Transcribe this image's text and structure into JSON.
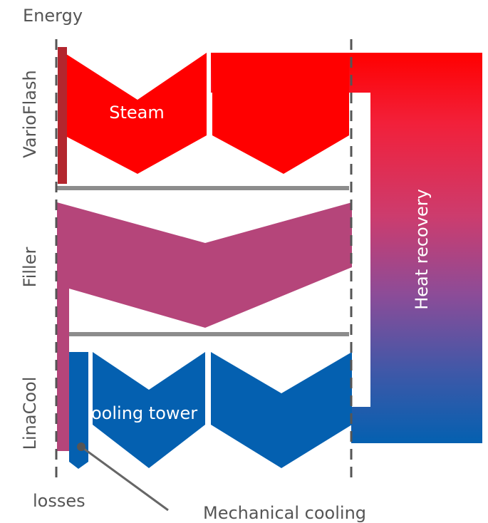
{
  "labels": {
    "energy": "Energy",
    "varioflash": "VarioFlash",
    "filler": "Filler",
    "linacool": "LinaCool",
    "steam": "Steam",
    "cooling_tower": "ooling tower",
    "heat_recovery": "Heat recovery",
    "losses": "losses",
    "mechanical_cooling": "Mechanical cooling"
  },
  "colors": {
    "steam": "#ff0000",
    "steam_edge": "#b3262e",
    "filler": "#b5457a",
    "cooling": "#0460b0",
    "divider": "#8c8c8c",
    "dashed_line": "#555555",
    "heat_recovery_top": "#ff0000",
    "heat_recovery_mid": "#cc3c6e",
    "heat_recovery_bottom": "#0460b0"
  }
}
